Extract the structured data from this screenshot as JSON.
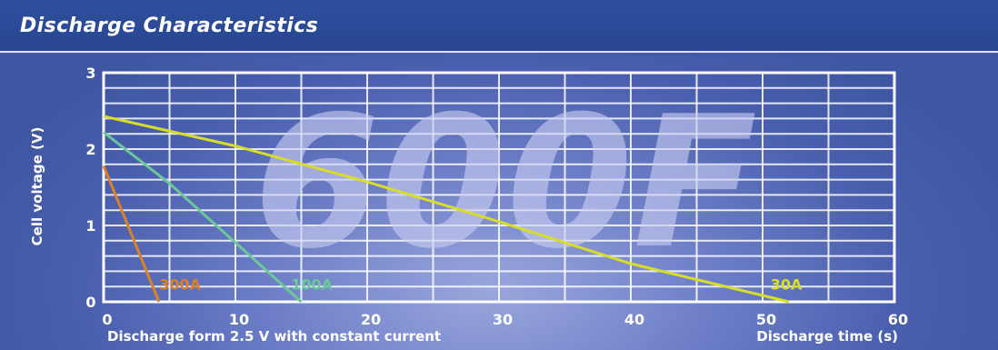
{
  "header": {
    "title": "Discharge Characteristics"
  },
  "watermark": "600F",
  "chart_data": {
    "type": "line",
    "title": "",
    "xlabel": "Discharge time (s)",
    "xlabel_left": "Discharge form 2.5 V with constant current",
    "ylabel": "Cell voltage (V)",
    "xlim": [
      0,
      60
    ],
    "ylim": [
      0,
      3
    ],
    "x_ticks": [
      0,
      10,
      20,
      30,
      40,
      50,
      60
    ],
    "y_ticks": [
      0,
      1,
      2,
      3
    ],
    "grid": true,
    "series": [
      {
        "name": "300A",
        "color": "#d9822b",
        "label_at": [
          5.8,
          0.16
        ],
        "points": [
          [
            0,
            1.78
          ],
          [
            4.2,
            0
          ]
        ]
      },
      {
        "name": "100A",
        "color": "#6cc79a",
        "label_at": [
          15.8,
          0.16
        ],
        "points": [
          [
            0,
            2.22
          ],
          [
            5,
            1.55
          ],
          [
            15,
            0
          ]
        ]
      },
      {
        "name": "30A",
        "color": "#d8dd2a",
        "label_at": [
          51.8,
          0.16
        ],
        "points": [
          [
            0,
            2.43
          ],
          [
            10,
            2.04
          ],
          [
            20,
            1.57
          ],
          [
            30,
            1.05
          ],
          [
            40,
            0.5
          ],
          [
            52,
            0
          ]
        ]
      }
    ]
  }
}
